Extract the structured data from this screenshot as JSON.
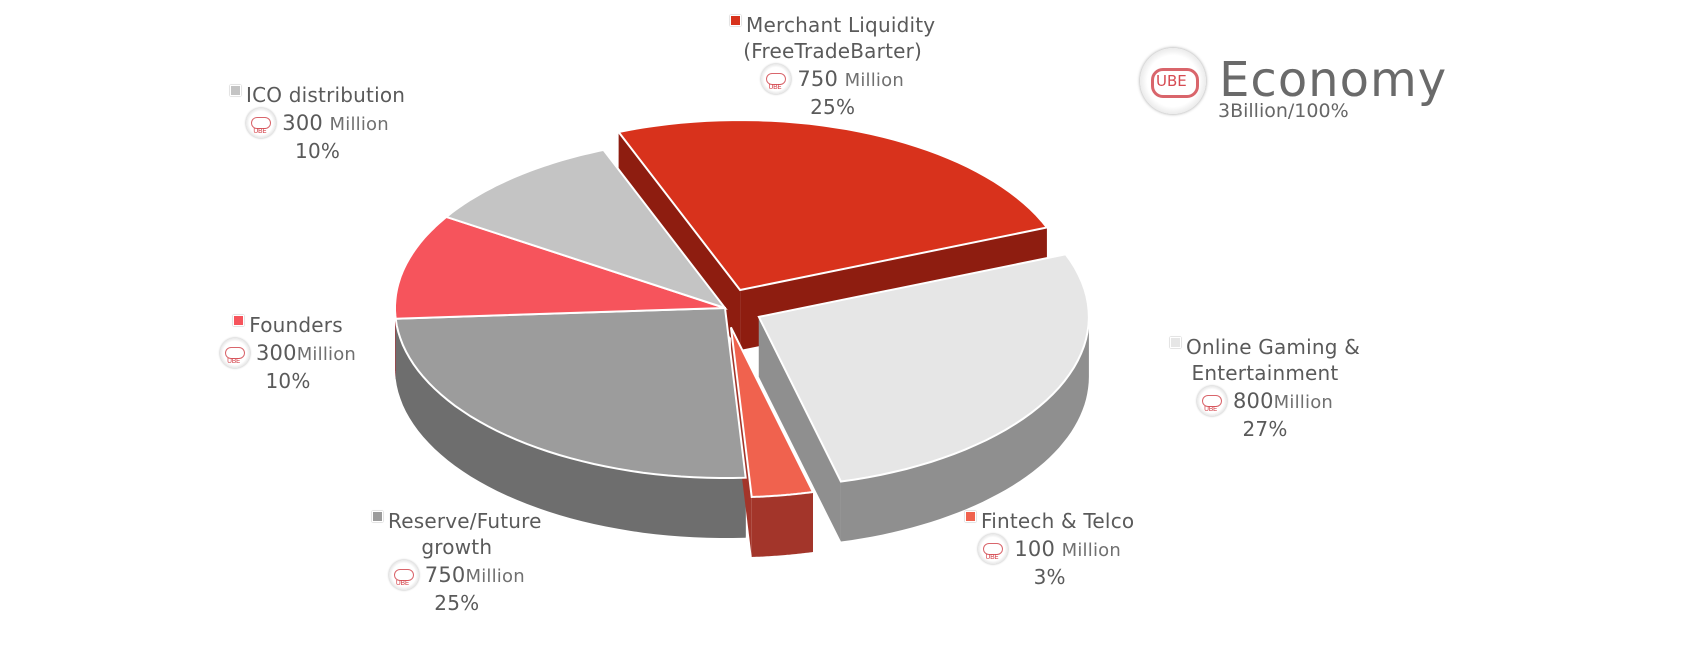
{
  "header": {
    "logo_text": "UBE",
    "title": "Economy",
    "subtitle": "3Billion/100%"
  },
  "chart_data": {
    "type": "pie",
    "title": "Economy",
    "total": "3Billion/100%",
    "slices": [
      {
        "name_lines": [
          "Merchant Liquidity",
          "(FreeTradeBarter)"
        ],
        "amount": "750",
        "unit": "Million",
        "percent": "25%",
        "value": 25,
        "color": "#d8321c",
        "side": "#8e1d10",
        "exploded": true
      },
      {
        "name_lines": [
          "Online Gaming &",
          "Entertainment"
        ],
        "amount": "800",
        "unit": "Million",
        "percent": "27%",
        "value": 27,
        "color": "#e6e6e6",
        "side": "#8f8f8f",
        "exploded": true
      },
      {
        "name_lines": [
          "Fintech & Telco"
        ],
        "amount": "100",
        "unit": "Million",
        "percent": "3%",
        "value": 3,
        "color": "#f0624e",
        "side": "#a3352a",
        "exploded": true
      },
      {
        "name_lines": [
          "Reserve/Future",
          "growth"
        ],
        "amount": "750",
        "unit": "Million",
        "percent": "25%",
        "value": 25,
        "color": "#9c9c9c",
        "side": "#6e6e6e",
        "exploded": false
      },
      {
        "name_lines": [
          "Founders"
        ],
        "amount": "300",
        "unit": "Million",
        "percent": "10%",
        "value": 10,
        "color": "#f6545c",
        "side": "#b42a32",
        "exploded": false
      },
      {
        "name_lines": [
          "ICO distribution"
        ],
        "amount": "300",
        "unit": "Million",
        "percent": "10%",
        "value": 10,
        "color": "#c4c4c4",
        "side": "#8a8a8a",
        "exploded": false
      }
    ]
  }
}
